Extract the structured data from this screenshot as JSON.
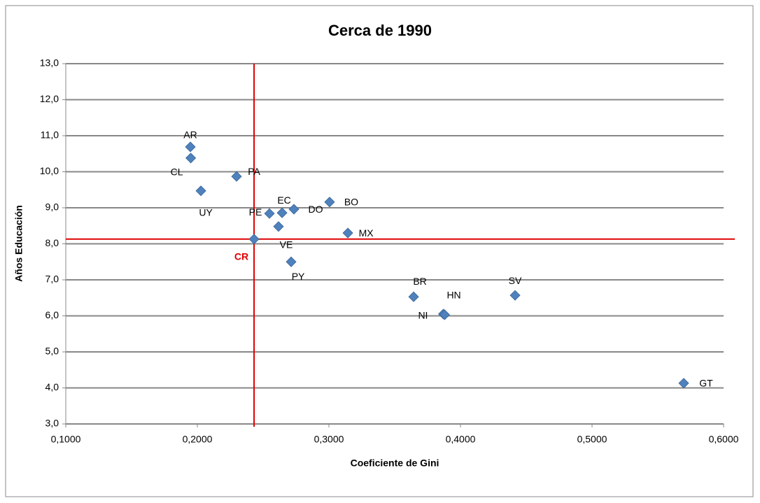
{
  "chart_data": {
    "type": "scatter",
    "title": "Cerca de 1990",
    "x_label": "Coeficiente de Gini",
    "y_label": "Años Educación",
    "series": [
      {
        "color": "#4f81bd",
        "labels": [
          "AR",
          "CL",
          "UY",
          "PA",
          "CR",
          "PE",
          "EC",
          "VE",
          "DO",
          "PY",
          "BO",
          "MX",
          "BR",
          "HN",
          "NI",
          "SV",
          "GT"
        ],
        "x": [
          0.1947,
          0.195,
          0.2027,
          0.2298,
          0.2431,
          0.2548,
          0.2644,
          0.2617,
          0.2734,
          0.2713,
          0.3005,
          0.3144,
          0.3644,
          0.387,
          0.388,
          0.4415,
          0.5697
        ],
        "values": [
          10.69,
          10.38,
          9.47,
          9.87,
          8.13,
          8.84,
          8.86,
          8.48,
          8.96,
          7.5,
          9.16,
          8.3,
          6.53,
          6.05,
          6.03,
          6.57,
          4.13
        ]
      }
    ],
    "highlight": "CR",
    "highlight_color": "#e00000",
    "xlim": [
      0.1,
      0.6
    ],
    "xticks": [
      {
        "value": 0.1,
        "label": "0,1000"
      },
      {
        "value": 0.2,
        "label": "0,2000"
      },
      {
        "value": 0.3,
        "label": "0,3000"
      },
      {
        "value": 0.4,
        "label": "0,4000"
      },
      {
        "value": 0.5,
        "label": "0,5000"
      },
      {
        "value": 0.6,
        "label": "0,6000"
      }
    ],
    "ylim": [
      3,
      13
    ],
    "yticks": [
      {
        "value": 3,
        "label": "3,0"
      },
      {
        "value": 4,
        "label": "4,0"
      },
      {
        "value": 5,
        "label": "5,0"
      },
      {
        "value": 6,
        "label": "6,0"
      },
      {
        "value": 7,
        "label": "7,0"
      },
      {
        "value": 8,
        "label": "8,0"
      },
      {
        "value": 9,
        "label": "9,0"
      },
      {
        "value": 10,
        "label": "10,0"
      },
      {
        "value": 11,
        "label": "11,0"
      },
      {
        "value": 12,
        "label": "12,0"
      },
      {
        "value": 13,
        "label": "13,0"
      }
    ],
    "grid": true
  }
}
